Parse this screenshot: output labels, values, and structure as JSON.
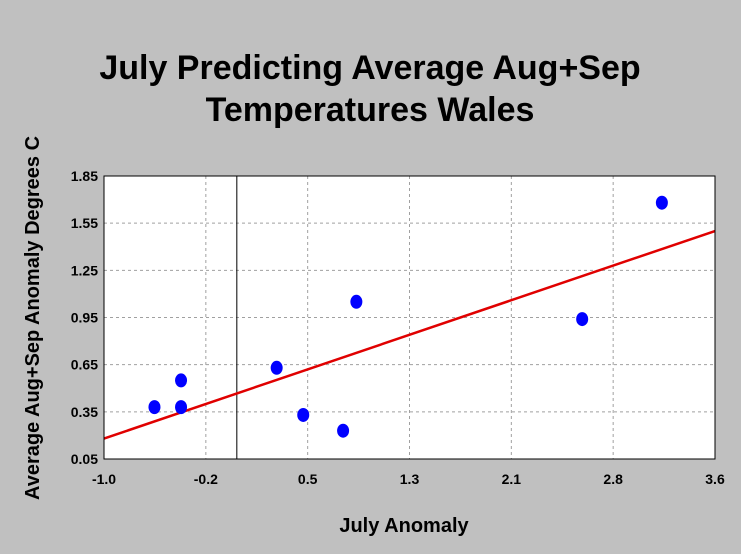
{
  "chart_data": {
    "type": "scatter",
    "title_lines": [
      "July Predicting Average Aug+Sep",
      "Temperatures Wales"
    ],
    "xlabel": "July Anomaly",
    "ylabel": "Average Aug+Sep Anomaly Degrees C",
    "xlim": [
      -1.0,
      3.6
    ],
    "ylim": [
      0.05,
      1.85
    ],
    "x_ticks": [
      "-1.0",
      "-0.2",
      "0.5",
      "1.3",
      "2.1",
      "2.8",
      "3.6"
    ],
    "y_ticks": [
      "0.05",
      "0.35",
      "0.65",
      "0.95",
      "1.25",
      "1.55",
      "1.85"
    ],
    "grid": true,
    "zero_line_x": 0.0,
    "points": [
      {
        "x": -0.62,
        "y": 0.38
      },
      {
        "x": -0.42,
        "y": 0.38
      },
      {
        "x": -0.42,
        "y": 0.55
      },
      {
        "x": 0.3,
        "y": 0.63
      },
      {
        "x": 0.5,
        "y": 0.33
      },
      {
        "x": 0.8,
        "y": 0.23
      },
      {
        "x": 0.9,
        "y": 1.05
      },
      {
        "x": 2.6,
        "y": 0.94
      },
      {
        "x": 3.2,
        "y": 1.68
      }
    ],
    "trendline": {
      "x": [
        -1.0,
        3.6
      ],
      "y": [
        0.18,
        1.5
      ]
    },
    "colors": {
      "background": "#c0c0c0",
      "plot_area": "#ffffff",
      "points": "#0000ff",
      "trendline": "#e00000",
      "grid": "#a0a0a0"
    }
  }
}
